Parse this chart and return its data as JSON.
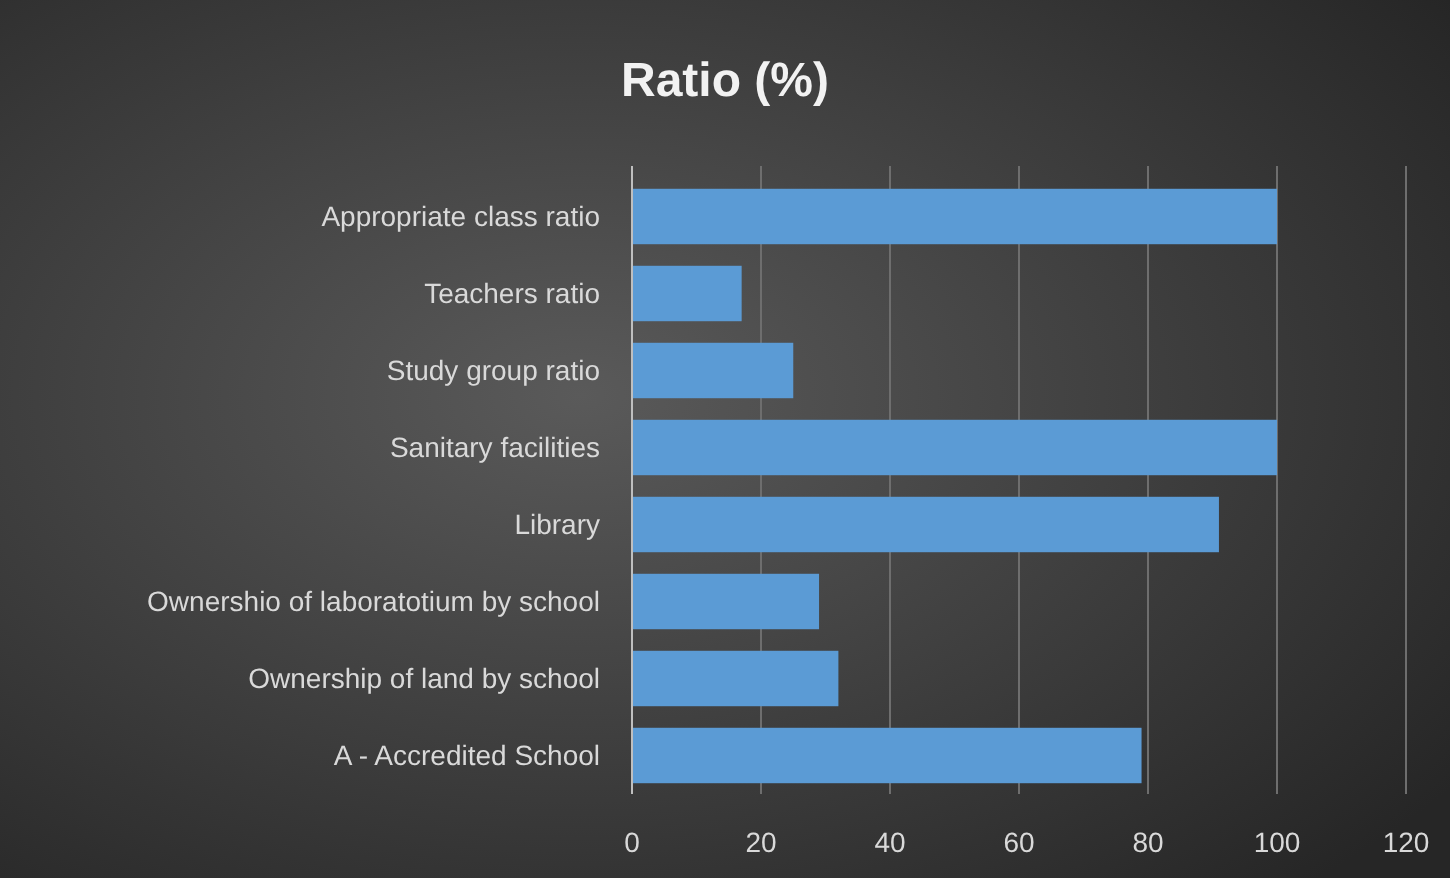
{
  "chart_data": {
    "type": "bar",
    "orientation": "horizontal",
    "title": "Ratio (%)",
    "categories": [
      "Appropriate class ratio",
      "Teachers ratio",
      "Study group ratio",
      "Sanitary facilities",
      "Library",
      "Ownershio of laboratotium by school",
      "Ownership of land by school",
      "A - Accredited School"
    ],
    "values": [
      100,
      17,
      25,
      100,
      91,
      29,
      32,
      79
    ],
    "color": "#5b9bd5",
    "xlim": [
      0,
      120
    ],
    "xticks": [
      0,
      20,
      40,
      60,
      80,
      100,
      120
    ],
    "grid": "x"
  }
}
